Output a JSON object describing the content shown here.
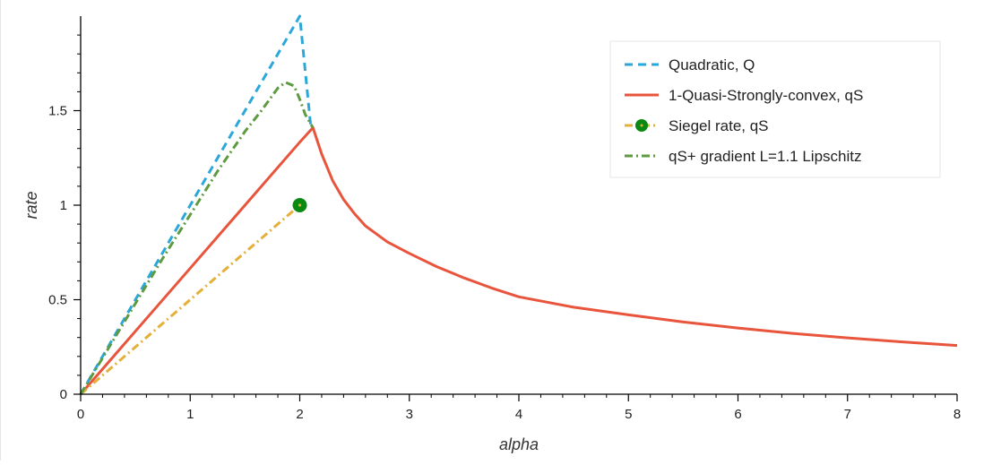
{
  "chart_data": {
    "type": "line",
    "xlabel": "alpha",
    "ylabel": "rate",
    "xlim": [
      0,
      8
    ],
    "ylim": [
      0,
      2.0
    ],
    "x_ticks": [
      0,
      1,
      2,
      3,
      4,
      5,
      6,
      7,
      8
    ],
    "x_tick_labels": [
      "0",
      "1",
      "2",
      "3",
      "4",
      "5",
      "6",
      "7",
      "8"
    ],
    "y_ticks": [
      0,
      0.5,
      1,
      1.5
    ],
    "y_tick_labels": [
      "0",
      "0.5",
      "1",
      "1.5"
    ],
    "grid": false,
    "legend_position": "top-right",
    "series": [
      {
        "name": "Quadratic, Q",
        "color": "#2ba8d9",
        "style": "dashed",
        "x": [
          0,
          0.5,
          1.0,
          1.5,
          1.9,
          1.98,
          2.0,
          2.1
        ],
        "y": [
          0,
          0.5,
          1.0,
          1.5,
          1.9,
          1.98,
          2.0,
          1.42
        ]
      },
      {
        "name": "1-Quasi-Strongly-convex, qS",
        "color": "#e8553c",
        "style": "solid",
        "x": [
          0,
          0.5,
          1.0,
          1.5,
          2.0,
          2.12,
          2.2,
          2.3,
          2.4,
          2.5,
          2.6,
          2.8,
          3.0,
          3.25,
          3.5,
          3.75,
          4.0,
          4.5,
          5.0,
          5.5,
          6.0,
          6.5,
          7.0,
          7.5,
          8.0
        ],
        "y": [
          0,
          0.333,
          0.667,
          1.0,
          1.333,
          1.41,
          1.27,
          1.13,
          1.03,
          0.955,
          0.89,
          0.805,
          0.745,
          0.675,
          0.615,
          0.562,
          0.515,
          0.46,
          0.42,
          0.382,
          0.35,
          0.322,
          0.298,
          0.277,
          0.258
        ]
      },
      {
        "name": "Siegel rate, qS",
        "color": "#e3b03a",
        "style": "dashdot",
        "marker_color": "#0a8a12",
        "x": [
          0,
          2.0
        ],
        "y": [
          0,
          1.0
        ],
        "markers": [
          {
            "x": 2.0,
            "y": 1.0
          }
        ]
      },
      {
        "name": "qS+ gradient L=1.1 Lipschitz",
        "color": "#5e9a3f",
        "style": "dashdot",
        "x": [
          0,
          0.25,
          0.5,
          0.75,
          1.0,
          1.25,
          1.5,
          1.65,
          1.8,
          1.87,
          1.95,
          2.0,
          2.05,
          2.12
        ],
        "y": [
          0,
          0.24,
          0.48,
          0.72,
          0.95,
          1.18,
          1.39,
          1.5,
          1.62,
          1.65,
          1.63,
          1.56,
          1.48,
          1.41
        ]
      }
    ]
  }
}
